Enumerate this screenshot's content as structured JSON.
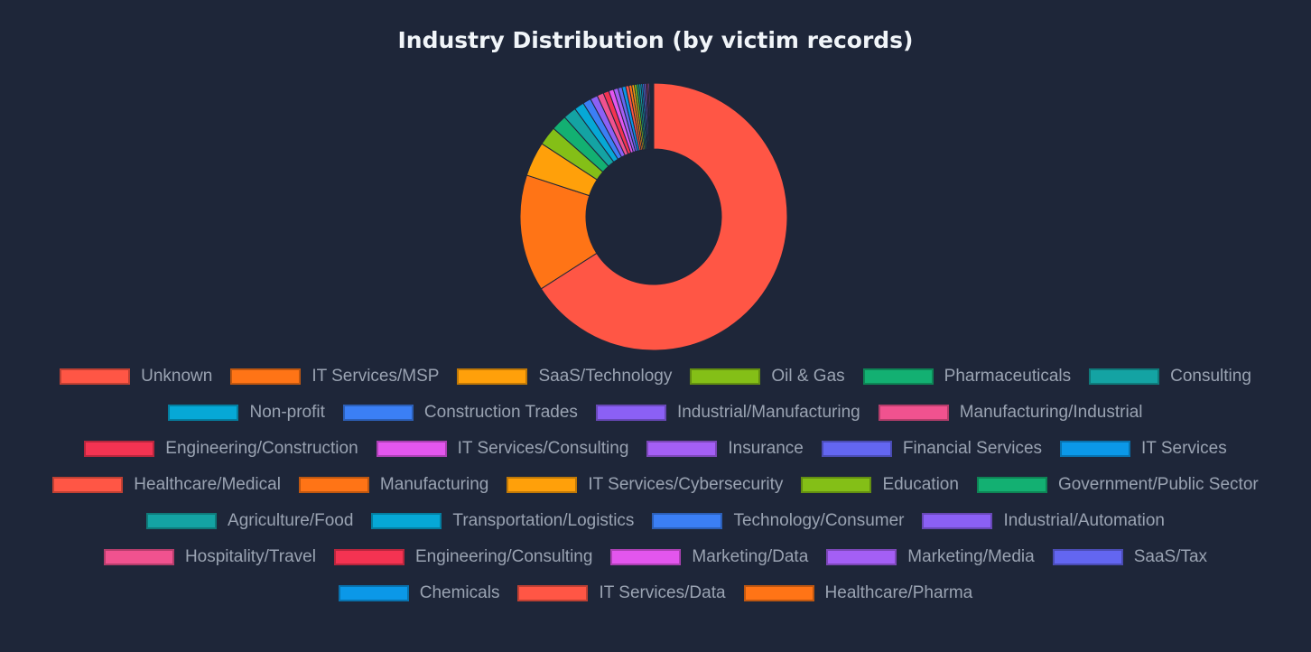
{
  "chart_data": {
    "type": "doughnut",
    "title": "Industry Distribution (by victim records)",
    "categories": [
      "Unknown",
      "IT Services/MSP",
      "SaaS/Technology",
      "Oil & Gas",
      "Pharmaceuticals",
      "Consulting",
      "Non-profit",
      "Construction Trades",
      "Industrial/Manufacturing",
      "Manufacturing/Industrial",
      "Engineering/Construction",
      "IT Services/Consulting",
      "Insurance",
      "Financial Services",
      "IT Services",
      "Healthcare/Medical",
      "Manufacturing",
      "IT Services/Cybersecurity",
      "Education",
      "Government/Public Sector",
      "Agriculture/Food",
      "Transportation/Logistics",
      "Technology/Consumer",
      "Industrial/Automation",
      "Hospitality/Travel",
      "Engineering/Consulting",
      "Marketing/Data",
      "Marketing/Media",
      "SaaS/Tax",
      "Chemicals",
      "IT Services/Data",
      "Healthcare/Pharma"
    ],
    "values": [
      66.4,
      14.2,
      4.2,
      2.3,
      1.9,
      1.6,
      1.2,
      1.0,
      0.9,
      0.8,
      0.7,
      0.6,
      0.55,
      0.5,
      0.45,
      0.4,
      0.35,
      0.3,
      0.3,
      0.25,
      0.25,
      0.2,
      0.2,
      0.2,
      0.15,
      0.15,
      0.15,
      0.1,
      0.1,
      0.1,
      0.1,
      0.1
    ],
    "colors": [
      "#ff5645",
      "#ff7416",
      "#ffa00a",
      "#84bf17",
      "#13b072",
      "#14a3a3",
      "#06a8d6",
      "#3b7ff5",
      "#8b60f5",
      "#f0528f",
      "#f43352",
      "#e356ee",
      "#a45ff5",
      "#6366f1",
      "#0b98e8",
      "#ff5645",
      "#ff7416",
      "#ffa00a",
      "#84bf17",
      "#13b072",
      "#14a3a3",
      "#06a8d6",
      "#3b7ff5",
      "#8b60f5",
      "#f0528f",
      "#f43352",
      "#e356ee",
      "#a45ff5",
      "#6366f1",
      "#0b98e8",
      "#ff5645",
      "#ff7416"
    ],
    "legend": "bottom"
  }
}
